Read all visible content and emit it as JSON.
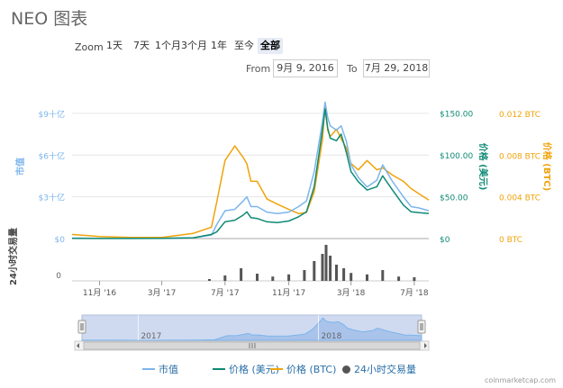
{
  "title": "NEO 图表",
  "zoom": {
    "label": "Zoom",
    "buttons": [
      "1天",
      "7天",
      "1个月",
      "3个月",
      "1年",
      "至今",
      "全部"
    ],
    "active_index": 6
  },
  "range": {
    "from_label": "From",
    "from_value": "9月 9, 2016",
    "to_label": "To",
    "to_value": "7月 29, 2018"
  },
  "colors": {
    "market_cap": "#7cb5ec",
    "price_usd": "#0f8a75",
    "price_btc": "#f0a30a",
    "volume": "#555555"
  },
  "chart_data": {
    "type": "line",
    "x_axis": {
      "ticks": [
        "11月 '16",
        "3月 '17",
        "7月 '17",
        "11月 '17",
        "3月 '18",
        "7月 '18"
      ],
      "range": [
        "2016-09-09",
        "2018-07-29"
      ]
    },
    "y_axes": {
      "market_cap": {
        "label": "市值",
        "ticks": [
          "$0",
          "$3十亿",
          "$6十亿",
          "$9十亿"
        ],
        "range": [
          0,
          11
        ]
      },
      "price_usd": {
        "label": "价格 (美元)",
        "ticks": [
          "$0",
          "$50.00",
          "$100.00",
          "$150.00"
        ],
        "range": [
          0,
          183
        ]
      },
      "price_btc": {
        "label": "价格 (BTC)",
        "ticks": [
          "0 BTC",
          "0.004 BTC",
          "0.008 BTC",
          "0.012 BTC"
        ],
        "range": [
          0,
          0.0147
        ]
      },
      "volume": {
        "label": "24小时交易量",
        "ticks": [
          "0"
        ]
      }
    },
    "series": [
      {
        "name": "市值",
        "axis": "market_cap",
        "x": [
          "2016-09-09",
          "2016-11-01",
          "2017-01-01",
          "2017-03-01",
          "2017-05-01",
          "2017-06-05",
          "2017-06-15",
          "2017-07-01",
          "2017-07-20",
          "2017-08-05",
          "2017-08-12",
          "2017-08-20",
          "2017-09-01",
          "2017-09-20",
          "2017-10-10",
          "2017-11-01",
          "2017-11-20",
          "2017-12-05",
          "2017-12-20",
          "2018-01-05",
          "2018-01-10",
          "2018-01-15",
          "2018-01-20",
          "2018-02-01",
          "2018-02-10",
          "2018-02-20",
          "2018-03-01",
          "2018-03-15",
          "2018-04-01",
          "2018-04-20",
          "2018-05-01",
          "2018-05-20",
          "2018-06-10",
          "2018-06-25",
          "2018-07-10",
          "2018-07-29"
        ],
        "values": [
          0.03,
          0.02,
          0.01,
          0.02,
          0.06,
          0.25,
          1.0,
          2.0,
          2.1,
          2.7,
          3.0,
          2.3,
          2.3,
          1.9,
          1.8,
          1.9,
          2.3,
          2.7,
          4.8,
          8.4,
          9.8,
          8.7,
          8.1,
          7.8,
          8.1,
          7.0,
          5.3,
          4.4,
          3.7,
          4.2,
          5.3,
          4.1,
          3.0,
          2.3,
          2.2,
          2.0
        ]
      },
      {
        "name": "价格 (美元)",
        "axis": "price_usd",
        "x": [
          "2016-09-09",
          "2016-11-01",
          "2017-01-01",
          "2017-03-01",
          "2017-05-01",
          "2017-06-05",
          "2017-06-15",
          "2017-07-01",
          "2017-07-20",
          "2017-08-05",
          "2017-08-12",
          "2017-08-20",
          "2017-09-01",
          "2017-09-20",
          "2017-10-10",
          "2017-11-01",
          "2017-11-20",
          "2017-12-05",
          "2017-12-20",
          "2018-01-05",
          "2018-01-10",
          "2018-01-15",
          "2018-01-20",
          "2018-02-01",
          "2018-02-10",
          "2018-02-20",
          "2018-03-01",
          "2018-03-15",
          "2018-04-01",
          "2018-04-20",
          "2018-05-01",
          "2018-05-20",
          "2018-06-10",
          "2018-06-25",
          "2018-07-10",
          "2018-07-29"
        ],
        "values": [
          0.2,
          0.15,
          0.1,
          0.2,
          1,
          5,
          8,
          20,
          22,
          28,
          32,
          25,
          24,
          20,
          19,
          21,
          26,
          32,
          62,
          130,
          155,
          132,
          120,
          117,
          125,
          103,
          80,
          68,
          58,
          62,
          75,
          58,
          40,
          32,
          31,
          30
        ]
      },
      {
        "name": "价格 (BTC)",
        "axis": "price_btc",
        "x": [
          "2016-09-09",
          "2016-11-01",
          "2017-01-01",
          "2017-03-01",
          "2017-05-01",
          "2017-06-05",
          "2017-06-15",
          "2017-07-01",
          "2017-07-20",
          "2017-08-05",
          "2017-08-12",
          "2017-08-20",
          "2017-09-01",
          "2017-09-20",
          "2017-10-10",
          "2017-11-01",
          "2017-11-20",
          "2017-12-05",
          "2017-12-20",
          "2018-01-05",
          "2018-01-10",
          "2018-01-15",
          "2018-01-20",
          "2018-02-01",
          "2018-02-10",
          "2018-02-20",
          "2018-03-01",
          "2018-03-15",
          "2018-04-01",
          "2018-04-20",
          "2018-05-01",
          "2018-05-20",
          "2018-06-10",
          "2018-06-25",
          "2018-07-10",
          "2018-07-29"
        ],
        "values": [
          0.0004,
          0.0002,
          0.0001,
          0.0001,
          0.0005,
          0.0011,
          0.0035,
          0.0075,
          0.0089,
          0.0078,
          0.0072,
          0.0055,
          0.0055,
          0.0038,
          0.0033,
          0.0028,
          0.0024,
          0.0025,
          0.0045,
          0.0095,
          0.0128,
          0.0104,
          0.0098,
          0.0105,
          0.0096,
          0.0087,
          0.0072,
          0.0066,
          0.0075,
          0.0066,
          0.0068,
          0.0061,
          0.0055,
          0.0048,
          0.0043,
          0.0037
        ]
      },
      {
        "name": "24小时交易量",
        "axis": "volume",
        "type": "bar",
        "x": [
          "2017-06-01",
          "2017-07-01",
          "2017-08-01",
          "2017-09-01",
          "2017-10-01",
          "2017-11-01",
          "2017-12-01",
          "2017-12-20",
          "2018-01-05",
          "2018-01-12",
          "2018-01-20",
          "2018-02-01",
          "2018-02-15",
          "2018-03-01",
          "2018-04-01",
          "2018-05-01",
          "2018-06-01",
          "2018-07-01"
        ],
        "values": [
          0.05,
          0.15,
          0.35,
          0.2,
          0.12,
          0.18,
          0.3,
          0.55,
          0.75,
          1.0,
          0.7,
          0.45,
          0.35,
          0.22,
          0.18,
          0.3,
          0.12,
          0.1
        ]
      }
    ],
    "navigator": {
      "ticks": [
        "2017",
        "2018"
      ]
    },
    "legend": {
      "position": "bottom",
      "items": [
        {
          "name": "市值",
          "marker": "line"
        },
        {
          "name": "价格 (美元)",
          "marker": "line"
        },
        {
          "name": "价格 (BTC)",
          "marker": "line"
        },
        {
          "name": "24小时交易量",
          "marker": "circle"
        }
      ]
    }
  },
  "credit": "coinmarketcap.com"
}
